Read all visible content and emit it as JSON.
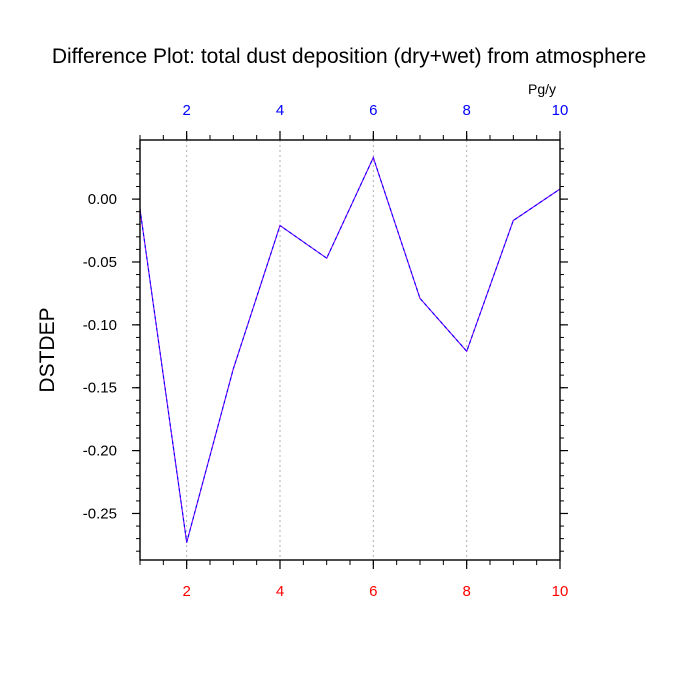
{
  "chart_data": {
    "type": "line",
    "title": "Difference Plot: total dust deposition (dry+wet) from atmosphere",
    "units": "Pg/y",
    "ylabel": "DSTDEP",
    "xlabel": "",
    "xlim": [
      1,
      10
    ],
    "ylim": [
      -0.287,
      0.047
    ],
    "x": [
      1,
      2,
      3,
      4,
      5,
      6,
      7,
      8,
      9,
      10
    ],
    "series": [
      {
        "values": [
          -0.008,
          -0.273,
          -0.135,
          -0.021,
          -0.047,
          0.033,
          -0.079,
          -0.121,
          -0.017,
          0.008
        ],
        "color": "#8000ff",
        "dash_color": "#0000ff",
        "dashed": true
      }
    ],
    "x_ticks_bottom": [
      "2",
      "4",
      "6",
      "8",
      "10"
    ],
    "x_ticks_top": [
      "2",
      "4",
      "6",
      "8",
      "10"
    ],
    "y_ticks": [
      "0.00",
      "-0.05",
      "-0.10",
      "-0.15",
      "-0.20",
      "-0.25"
    ],
    "y_tick_values": [
      0.0,
      -0.05,
      -0.1,
      -0.15,
      -0.2,
      -0.25
    ],
    "x_tick_values": [
      2,
      4,
      6,
      8,
      10
    ],
    "grid": "vertical dotted",
    "bottom_tick_color": "#ff0000",
    "top_tick_color": "#0000ff"
  }
}
